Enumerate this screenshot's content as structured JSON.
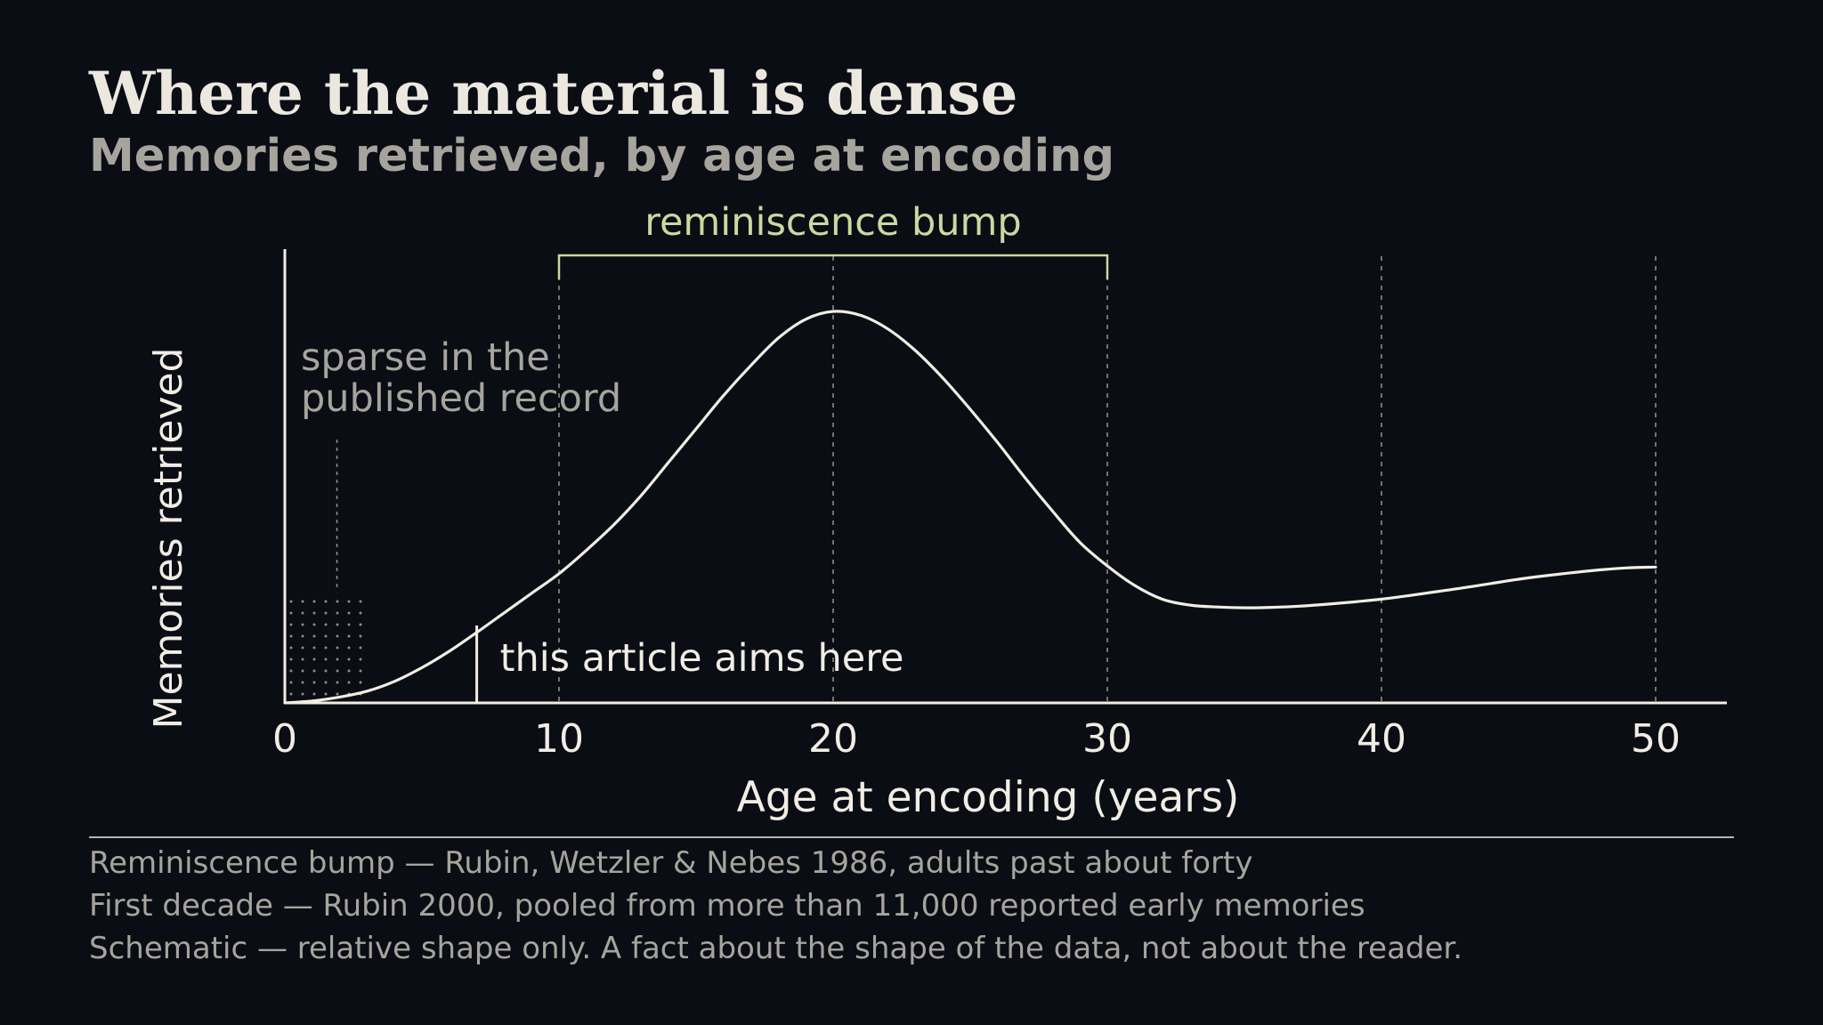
{
  "title": "Where the material is dense",
  "subtitle": "Memories retrieved, by age at encoding",
  "colors": {
    "background": "#0a0d14",
    "curve": "#f2ede4",
    "axis": "#f2ede4",
    "muted_text": "#a7a49d",
    "bump_accent": "#c9d9a0",
    "guide_lines": "#8f8c86"
  },
  "chart_data": {
    "type": "line",
    "title": "",
    "xlabel": "Age at encoding (years)",
    "ylabel": "Memories retrieved",
    "xlim": [
      0,
      51.3
    ],
    "ylim": [
      0,
      1
    ],
    "x_ticks": [
      0,
      10,
      20,
      30,
      40,
      50
    ],
    "x_tick_labels": [
      "0",
      "10",
      "20",
      "30",
      "40",
      "50"
    ],
    "y_ticks_shown": false,
    "grid": "dashed vertical lines at x = 10, 20, 30, 40, 50",
    "series": [
      {
        "x": [
          0,
          1,
          2,
          3,
          4,
          5,
          6,
          7,
          8,
          9,
          10,
          11,
          12,
          13,
          14,
          15,
          16,
          17,
          18,
          19,
          20,
          21,
          22,
          23,
          24,
          25,
          26,
          27,
          28,
          29,
          30,
          31,
          32,
          33,
          34,
          35,
          36,
          37,
          38,
          39,
          40,
          41,
          42,
          43,
          44,
          45,
          46,
          47,
          48,
          49,
          50
        ],
        "y": [
          0.0,
          0.005,
          0.015,
          0.03,
          0.055,
          0.09,
          0.132,
          0.18,
          0.23,
          0.28,
          0.33,
          0.39,
          0.455,
          0.53,
          0.615,
          0.7,
          0.785,
          0.862,
          0.932,
          0.98,
          1.0,
          0.99,
          0.955,
          0.9,
          0.83,
          0.75,
          0.665,
          0.575,
          0.49,
          0.41,
          0.35,
          0.3,
          0.265,
          0.25,
          0.245,
          0.243,
          0.244,
          0.247,
          0.252,
          0.258,
          0.265,
          0.274,
          0.284,
          0.294,
          0.305,
          0.316,
          0.325,
          0.333,
          0.34,
          0.345,
          0.347
        ]
      }
    ],
    "annotations": [
      {
        "type": "bracket",
        "label": "reminiscence bump",
        "x_start": 10,
        "x_end": 30
      },
      {
        "type": "dotted_region",
        "label_lines": [
          "sparse in the",
          "published record"
        ],
        "x_start": 0,
        "x_end": 3,
        "y_top": 0.27,
        "leader_x": 1.9
      },
      {
        "type": "marker_line",
        "label": "this article aims here",
        "x": 7
      }
    ]
  },
  "notes": [
    "Reminiscence bump — Rubin, Wetzler & Nebes 1986, adults past about forty",
    "First decade — Rubin 2000, pooled from more than 11,000 reported early memories",
    "Schematic — relative shape only. A fact about the shape of the data, not about the reader."
  ]
}
